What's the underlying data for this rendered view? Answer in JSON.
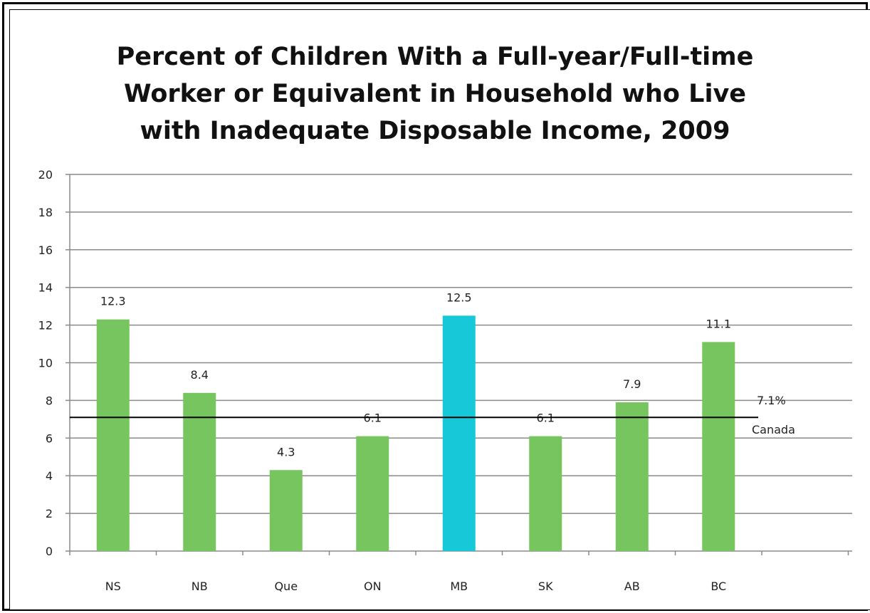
{
  "chart_data": {
    "type": "bar",
    "title_lines": [
      "Percent of Children With a Full-year/Full-time",
      "Worker or Equivalent in Household who Live",
      "with Inadequate Disposable Income, 2009"
    ],
    "categories": [
      "NS",
      "NB",
      "Que",
      "ON",
      "MB",
      "SK",
      "AB",
      "BC"
    ],
    "values": [
      12.3,
      8.4,
      4.3,
      6.1,
      12.5,
      6.1,
      7.9,
      11.1
    ],
    "value_labels": [
      "12.3",
      "8.4",
      "4.3",
      "6.1",
      "12.5",
      "6.1",
      "7.9",
      "11.1"
    ],
    "bar_colors": [
      "#77c55e",
      "#77c55e",
      "#77c55e",
      "#77c55e",
      "#17c8d8",
      "#77c55e",
      "#77c55e",
      "#77c55e"
    ],
    "ylim": [
      0,
      20
    ],
    "yticks": [
      0,
      2,
      4,
      6,
      8,
      10,
      12,
      14,
      16,
      18,
      20
    ],
    "grid": true,
    "reference_line": {
      "value": 7.1,
      "label_value": "7.1%",
      "label_name": "Canada",
      "color": "#000000"
    },
    "xlabel": "",
    "ylabel": ""
  }
}
